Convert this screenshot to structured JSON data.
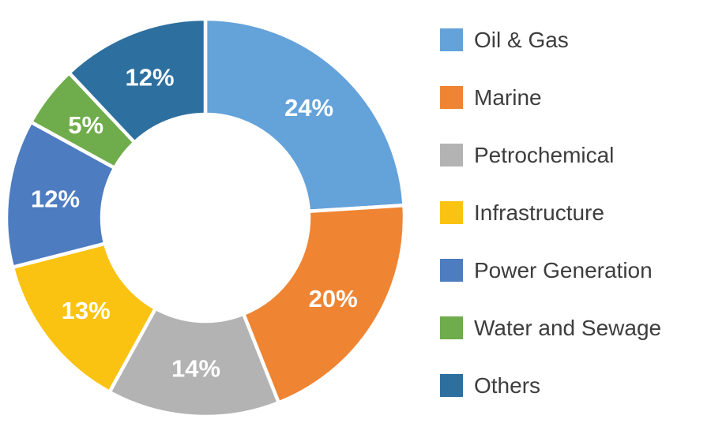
{
  "chart_data": {
    "type": "donut",
    "title": "",
    "categories": [
      "Oil & Gas",
      "Marine",
      "Petrochemical",
      "Infrastructure",
      "Power Generation",
      "Water and Sewage",
      "Others"
    ],
    "values": [
      24,
      20,
      14,
      13,
      12,
      5,
      12
    ],
    "labels": [
      "24%",
      "20%",
      "14%",
      "13%",
      "12%",
      "5%",
      "12%"
    ],
    "colors": [
      "#64A2DA",
      "#EF8433",
      "#B3B3B3",
      "#FBC311",
      "#4D7CC1",
      "#6FAC4B",
      "#2D6F9F"
    ],
    "slice_label_color": "#FFFFFF",
    "slice_border_color": "#FFFFFF",
    "background_color": "#FFFFFF",
    "legend_position": "right",
    "legend_text_color": "#3D3D3D",
    "start_angle_deg": 0,
    "direction": "clockwise",
    "donut_hole_ratio": 0.52
  }
}
